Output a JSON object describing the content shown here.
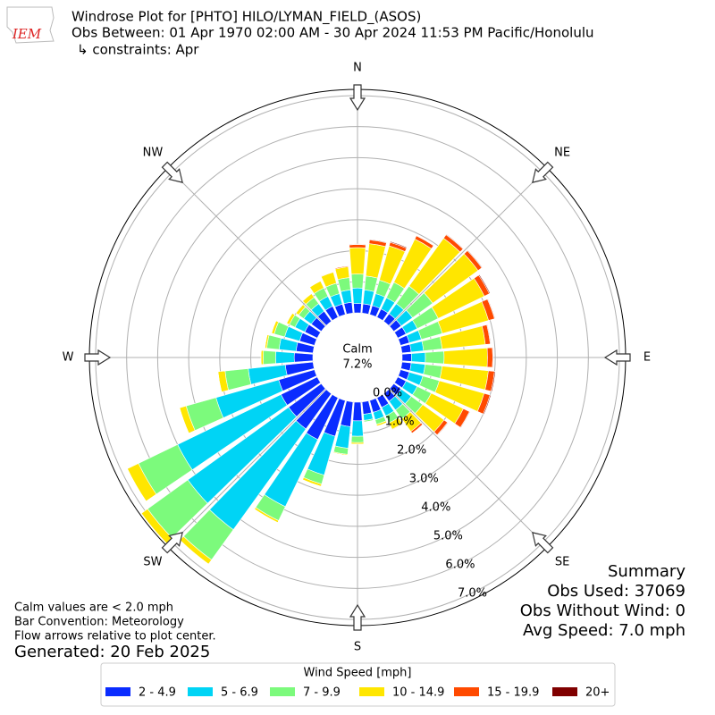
{
  "logo_text": "IEM",
  "header": {
    "title": "Windrose Plot for [PHTO] HILO/LYMAN_FIELD_(ASOS)",
    "subtitle": "Obs Between: 01 Apr 1970 02:00 AM - 30 Apr 2024 11:53 PM Pacific/Honolulu",
    "constraints": "↳ constraints: Apr"
  },
  "chart_data": {
    "type": "windrose",
    "direction_labels": [
      "N",
      "NE",
      "E",
      "SE",
      "S",
      "SW",
      "W",
      "NW"
    ],
    "calm": {
      "label": "Calm",
      "text": "7.2%"
    },
    "categories": [
      null,
      null,
      null,
      null,
      null,
      null,
      null,
      null,
      null,
      null,
      null,
      null,
      null,
      null,
      null,
      null,
      null,
      null,
      null,
      null,
      null,
      null,
      null,
      null,
      null,
      null,
      null,
      null,
      null,
      null,
      null,
      null,
      null,
      null,
      null,
      null
    ],
    "ylim": [
      0,
      7.2
    ],
    "yticks": [
      {
        "value": 0,
        "label": "0.0%"
      },
      {
        "value": 1,
        "label": "1.0%"
      },
      {
        "value": 2,
        "label": "2.0%"
      },
      {
        "value": 3,
        "label": "3.0%"
      },
      {
        "value": 4,
        "label": "4.0%"
      },
      {
        "value": 5,
        "label": "5.0%"
      },
      {
        "value": 6,
        "label": "6.0%"
      },
      {
        "value": 7,
        "label": "7.0%"
      }
    ],
    "grid": true,
    "legend_title": "Wind Speed [mph]",
    "series": [
      {
        "name": "2 - 4.9",
        "color": "#0a2cff",
        "values": [
          0.3,
          0.3,
          0.3,
          0.3,
          0.3,
          0.3,
          0.3,
          0.3,
          0.3,
          0.3,
          0.3,
          0.3,
          0.3,
          0.3,
          0.3,
          0.35,
          0.4,
          0.4,
          0.6,
          0.8,
          1.2,
          1.5,
          1.4,
          1.3,
          1.3,
          1.2,
          0.9,
          0.6,
          0.55,
          0.5,
          0.45,
          0.4,
          0.4,
          0.4,
          0.35,
          0.35
        ]
      },
      {
        "name": "5 - 6.9",
        "color": "#00d4f5",
        "values": [
          0.5,
          0.45,
          0.4,
          0.4,
          0.4,
          0.45,
          0.4,
          0.4,
          0.4,
          0.45,
          0.45,
          0.45,
          0.4,
          0.4,
          0.35,
          0.3,
          0.25,
          0.2,
          0.5,
          0.7,
          1.3,
          2.4,
          4.0,
          4.0,
          3.7,
          2.1,
          1.2,
          0.6,
          0.55,
          0.5,
          0.35,
          0.3,
          0.3,
          0.35,
          0.35,
          0.4
        ]
      },
      {
        "name": "7 - 9.9",
        "color": "#7cfa7c",
        "values": [
          0.45,
          0.45,
          0.45,
          0.55,
          0.7,
          0.8,
          0.75,
          0.7,
          0.6,
          0.6,
          0.55,
          0.55,
          0.5,
          0.45,
          0.35,
          0.25,
          0.15,
          0.05,
          0.2,
          0.2,
          0.3,
          0.5,
          1.2,
          1.6,
          1.4,
          1.0,
          0.75,
          0.4,
          0.4,
          0.35,
          0.2,
          0.2,
          0.25,
          0.3,
          0.35,
          0.4
        ]
      },
      {
        "name": "10 - 14.9",
        "color": "#ffe600",
        "values": [
          0.85,
          1.05,
          1.15,
          1.55,
          1.9,
          1.8,
          1.65,
          1.55,
          1.4,
          1.4,
          1.5,
          1.5,
          1.15,
          0.85,
          0.5,
          0.23,
          0.06,
          0.01,
          0.05,
          0.03,
          0.08,
          0.07,
          0.17,
          0.25,
          0.4,
          0.22,
          0.23,
          0.07,
          0.06,
          0.09,
          0.1,
          0.11,
          0.15,
          0.25,
          0.37,
          0.35
        ]
      },
      {
        "name": "15 - 19.9",
        "color": "#ff4a00",
        "values": [
          0.1,
          0.12,
          0.12,
          0.12,
          0.14,
          0.15,
          0.18,
          0.2,
          0.16,
          0.17,
          0.2,
          0.2,
          0.22,
          0.14,
          0.07,
          0.02,
          0,
          0,
          0,
          0,
          0,
          0,
          0,
          0,
          0,
          0,
          0,
          0,
          0,
          0,
          0,
          0,
          0,
          0,
          0.02,
          0.03
        ]
      },
      {
        "name": "20+",
        "color": "#800000",
        "values": [
          0.02,
          0.02,
          0.03,
          0.02,
          0.02,
          0.02,
          0.03,
          0.02,
          0.02,
          0.02,
          0.03,
          0.03,
          0.02,
          0.02,
          0.01,
          0,
          0,
          0,
          0,
          0,
          0,
          0,
          0,
          0,
          0,
          0,
          0,
          0,
          0,
          0,
          0,
          0,
          0,
          0,
          0,
          0
        ]
      }
    ]
  },
  "notes": [
    "Calm values are < 2.0 mph",
    "Bar Convention: Meteorology",
    "Flow arrows relative to plot center."
  ],
  "generated": "Generated: 20 Feb 2025",
  "summary": [
    "Summary",
    "Obs Used: 37069",
    "Obs Without Wind: 0",
    "Avg Speed: 7.0 mph"
  ]
}
